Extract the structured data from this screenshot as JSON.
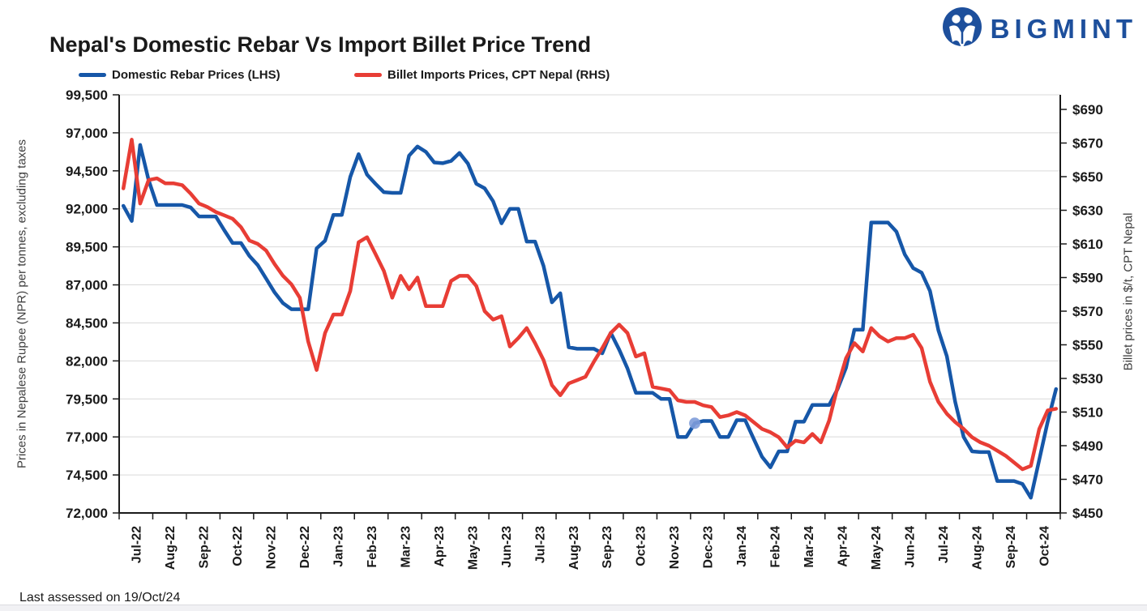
{
  "header": {
    "title": "Nepal's Domestic Rebar Vs Import Billet Price Trend",
    "brand": "BIGMINT",
    "brand_color": "#1d4f9c"
  },
  "legend": {
    "items": [
      {
        "label": "Domestic Rebar Prices (LHS)",
        "color": "#1657A8"
      },
      {
        "label": "Billet Imports Prices, CPT Nepal (RHS)",
        "color": "#E83D35"
      }
    ]
  },
  "footer": {
    "note": "Last assessed on 19/Oct/24"
  },
  "chart_data": {
    "type": "line",
    "title": "Nepal's Domestic Rebar Vs Import Billet Price Trend",
    "grid": true,
    "legend_position": "top",
    "colors": {
      "grid": "#d9d9d9",
      "axis": "#1a1a1a",
      "highlight": "#7e9cd9"
    },
    "x_axis": {
      "categories": [
        "Jul-22",
        "Aug-22",
        "Sep-22",
        "Oct-22",
        "Nov-22",
        "Dec-22",
        "Jan-23",
        "Feb-23",
        "Mar-23",
        "Apr-23",
        "May-23",
        "Jun-23",
        "Jul-23",
        "Aug-23",
        "Sep-23",
        "Oct-23",
        "Nov-23",
        "Dec-23",
        "Jan-24",
        "Feb-24",
        "Mar-24",
        "Apr-24",
        "May-24",
        "Jun-24",
        "Jul-24",
        "Aug-24",
        "Sep-24",
        "Oct-24"
      ],
      "points_per_month": 4
    },
    "y_left": {
      "label": "Prices in Nepalese Rupee (NPR) per  tonnes, excluding taxes",
      "min": 72000,
      "max": 99500,
      "step": 2500,
      "ticks": [
        "99,500",
        "97,000",
        "94,500",
        "92,000",
        "89,500",
        "87,000",
        "84,500",
        "82,000",
        "79,500",
        "77,000",
        "74,500",
        "72,000"
      ]
    },
    "y_right": {
      "label": "Billet prices in $/t, CPT Nepal",
      "min": 450,
      "max": 690,
      "step": 20,
      "ticks": [
        "$690",
        "$670",
        "$650",
        "$630",
        "$610",
        "$590",
        "$570",
        "$550",
        "$530",
        "$510",
        "$490",
        "$470",
        "$450"
      ]
    },
    "series": [
      {
        "name": "Domestic Rebar Prices (LHS)",
        "axis": "left",
        "color": "#1657A8",
        "values": [
          92200,
          91200,
          96200,
          93900,
          92250,
          92250,
          92250,
          92250,
          92100,
          91500,
          91500,
          91500,
          90600,
          89750,
          89750,
          88900,
          88300,
          87400,
          86500,
          85800,
          85400,
          85400,
          85400,
          89400,
          89900,
          91600,
          91600,
          94100,
          95600,
          94250,
          93650,
          93100,
          93050,
          93050,
          95500,
          96100,
          95750,
          95050,
          95000,
          95150,
          95680,
          94980,
          93650,
          93350,
          92500,
          91050,
          92000,
          92000,
          89850,
          89850,
          88250,
          85850,
          86450,
          82900,
          82800,
          82800,
          82800,
          82500,
          83850,
          82750,
          81500,
          79900,
          79900,
          79900,
          79500,
          79500,
          77000,
          77000,
          77900,
          78050,
          78050,
          77000,
          77000,
          78100,
          78100,
          76900,
          75700,
          75000,
          76050,
          76050,
          78000,
          78000,
          79100,
          79100,
          79100,
          80150,
          81550,
          84050,
          84050,
          91100,
          91100,
          91100,
          90500,
          89000,
          88100,
          87800,
          86600,
          84000,
          82300,
          79300,
          77000,
          76050,
          76000,
          76000,
          74100,
          74100,
          74100,
          73900,
          73000,
          75500,
          78000,
          80150
        ]
      },
      {
        "name": "Billet Imports Prices, CPT Nepal (RHS)",
        "axis": "right",
        "color": "#E83D35",
        "values": [
          643,
          672,
          634,
          648,
          649,
          646,
          646,
          645,
          640,
          634,
          632,
          629,
          627,
          625,
          620,
          612,
          610,
          606,
          598,
          591,
          586,
          578,
          552,
          535,
          557,
          568,
          568,
          582,
          611,
          614,
          604,
          594,
          578,
          591,
          583,
          590,
          573,
          573,
          573,
          588,
          591,
          591,
          585,
          570,
          565,
          567,
          549,
          554,
          560,
          551,
          541,
          526,
          520,
          527,
          529,
          531,
          540,
          548,
          557,
          562,
          557,
          543,
          545,
          525,
          524,
          523,
          517,
          516,
          516,
          514,
          513,
          507,
          508,
          510,
          508,
          504,
          500,
          498,
          495,
          489,
          493,
          492,
          497,
          492,
          505,
          525,
          542,
          551,
          546,
          560,
          555,
          552,
          554,
          554,
          556,
          548,
          528,
          516,
          509,
          504,
          500,
          495,
          492,
          490,
          487,
          484,
          480,
          476,
          478,
          500,
          511,
          512
        ]
      }
    ],
    "highlight_point": {
      "series": 0,
      "index": 68,
      "color": "#7e9cd9"
    }
  }
}
